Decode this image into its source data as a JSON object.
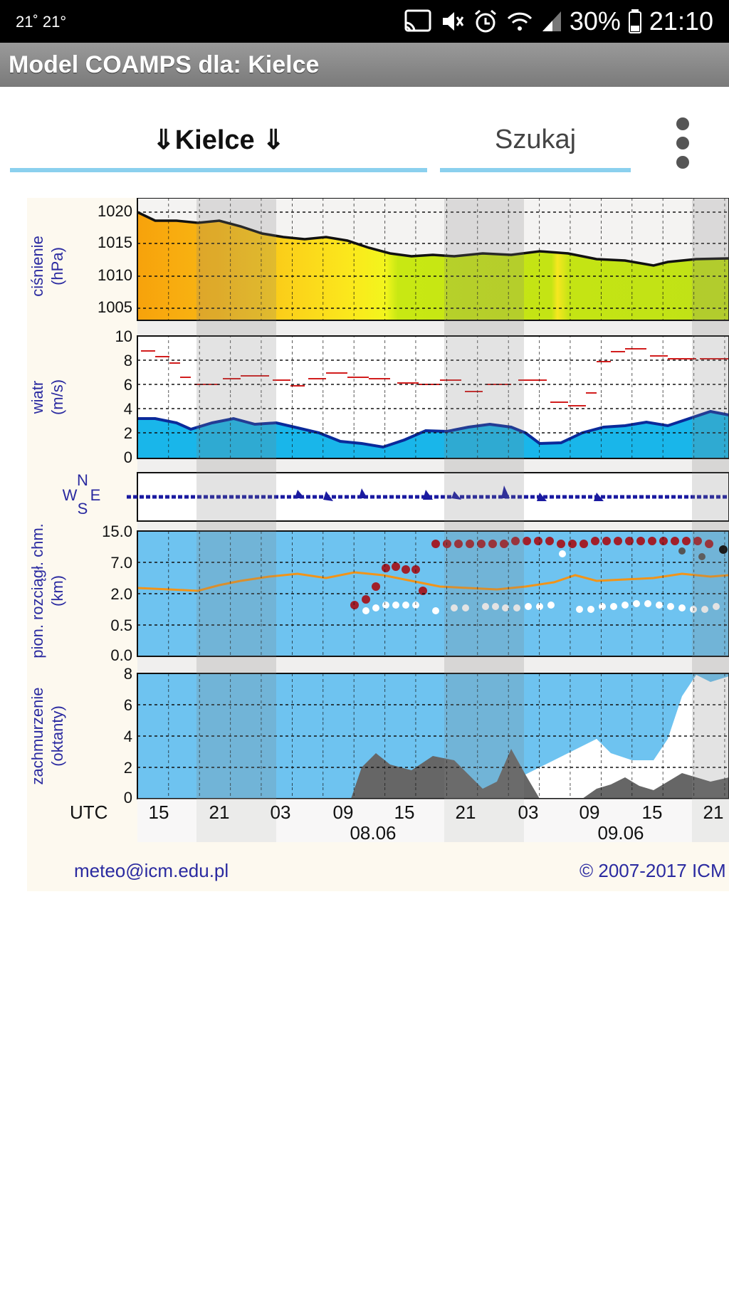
{
  "status_bar": {
    "left_text": "21˚ 21°",
    "battery": "30%",
    "time": "21:10",
    "icons": [
      "cast-icon",
      "mute-icon",
      "alarm-icon",
      "wifi-icon",
      "signal-icon",
      "battery-icon"
    ]
  },
  "app_bar": {
    "title": "Model COAMPS dla: Kielce"
  },
  "controls": {
    "city_label": "⇓Kielce ⇓",
    "search_label": "Szukaj",
    "accent_color": "#8bd0ee"
  },
  "meteogram": {
    "panels": {
      "pressure": {
        "ylabel_1": "ciśnienie",
        "ylabel_2": "(hPa)",
        "ticks": [
          "1020",
          "1015",
          "1010",
          "1005"
        ]
      },
      "wind": {
        "ylabel_1": "wiatr",
        "ylabel_2": "(m/s)",
        "ticks": [
          "10",
          "8",
          "6",
          "4",
          "2",
          "0"
        ]
      },
      "direction": {
        "labels": [
          "N",
          "W",
          "E",
          "S"
        ]
      },
      "clouds_vertical": {
        "ylabel_1": "pion. rozciągł. chm.",
        "ylabel_2": "(km)",
        "ticks": [
          "15.0",
          "7.0",
          "2.0",
          "0.5",
          "0.0"
        ]
      },
      "cloud_cover": {
        "ylabel_1": "zachmurzenie",
        "ylabel_2": "(oktanty)",
        "ticks": [
          "8",
          "6",
          "4",
          "2",
          "0"
        ]
      }
    },
    "x_axis": {
      "unit_label": "UTC",
      "ticks": [
        "15",
        "21",
        "03",
        "09",
        "15",
        "21",
        "03",
        "09",
        "15",
        "21"
      ],
      "dates": [
        "08.06",
        "09.06"
      ]
    }
  },
  "footer": {
    "email": "meteo@icm.edu.pl",
    "copyright": "© 2007-2017 ICM"
  }
}
